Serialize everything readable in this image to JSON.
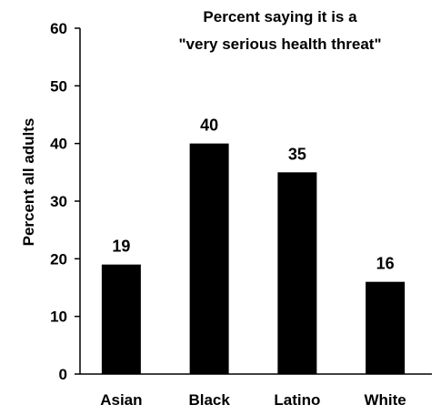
{
  "chart_data": {
    "type": "bar",
    "title_lines": [
      "Percent saying it is a",
      "\"very serious health threat\""
    ],
    "ylabel": "Percent all adults",
    "xlabel": "",
    "categories": [
      "Asian",
      "Black",
      "Latino",
      "White"
    ],
    "values": [
      19,
      40,
      35,
      16
    ],
    "data_labels": [
      "19",
      "40",
      "35",
      "16"
    ],
    "ylim": [
      0,
      60
    ],
    "yticks": [
      "0",
      "10",
      "20",
      "30",
      "40",
      "50",
      "60"
    ],
    "grid": false,
    "legend": "none",
    "colors": {
      "bar": "#000000",
      "axis": "#000000",
      "background": "#ffffff"
    }
  }
}
